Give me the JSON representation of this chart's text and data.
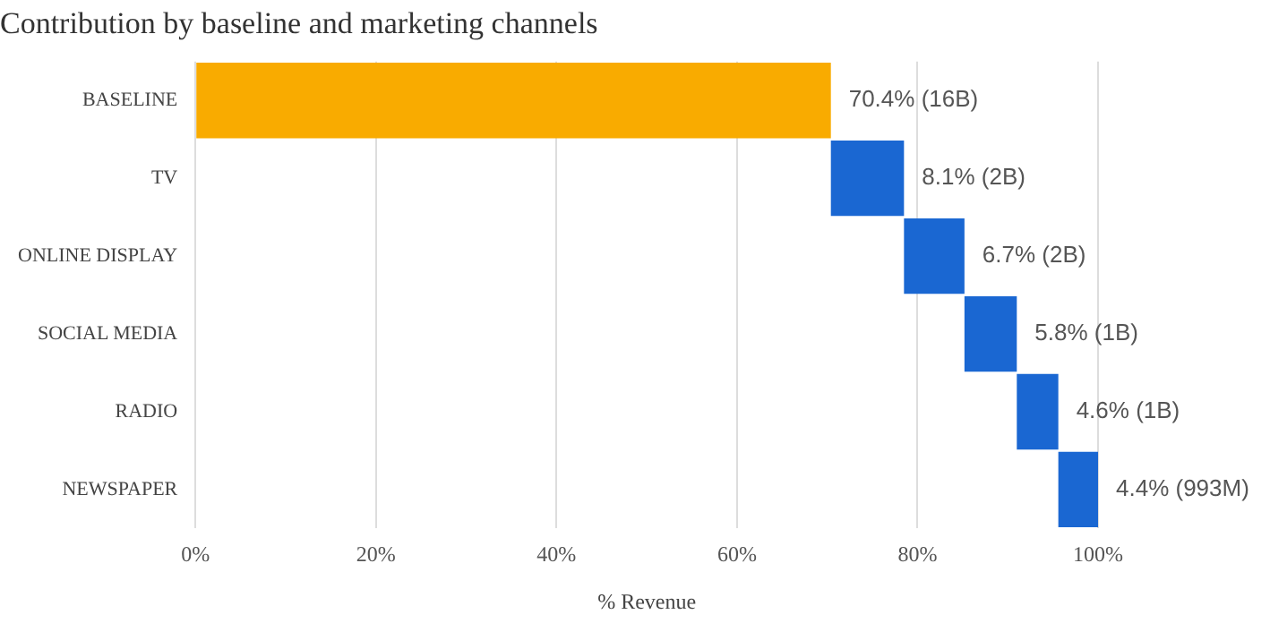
{
  "chart_data": {
    "type": "bar",
    "orientation": "horizontal",
    "title": "Contribution by baseline and marketing channels",
    "xlabel": "% Revenue",
    "categories": [
      "BASELINE",
      "TV",
      "ONLINE DISPLAY",
      "SOCIAL MEDIA",
      "RADIO",
      "NEWSPAPER"
    ],
    "values": [
      70.4,
      8.1,
      6.7,
      5.8,
      4.6,
      4.4
    ],
    "base": [
      0,
      70.4,
      78.5,
      85.2,
      91.0,
      95.6
    ],
    "colors": [
      "#f9ab00",
      "#1a67d2",
      "#1a67d2",
      "#1a67d2",
      "#1a67d2",
      "#1a67d2"
    ],
    "value_labels": [
      "70.4% (16B)",
      "8.1% (2B)",
      "6.7% (2B)",
      "5.8% (1B)",
      "4.6% (1B)",
      "4.4% (993M)"
    ],
    "xlim": [
      0,
      100
    ],
    "xticks": [
      {
        "value": 0,
        "label": "0%"
      },
      {
        "value": 20,
        "label": "20%"
      },
      {
        "value": 40,
        "label": "40%"
      },
      {
        "value": 60,
        "label": "60%"
      },
      {
        "value": 80,
        "label": "80%"
      },
      {
        "value": 100,
        "label": "100%"
      }
    ],
    "grid": "x",
    "legend": false
  }
}
